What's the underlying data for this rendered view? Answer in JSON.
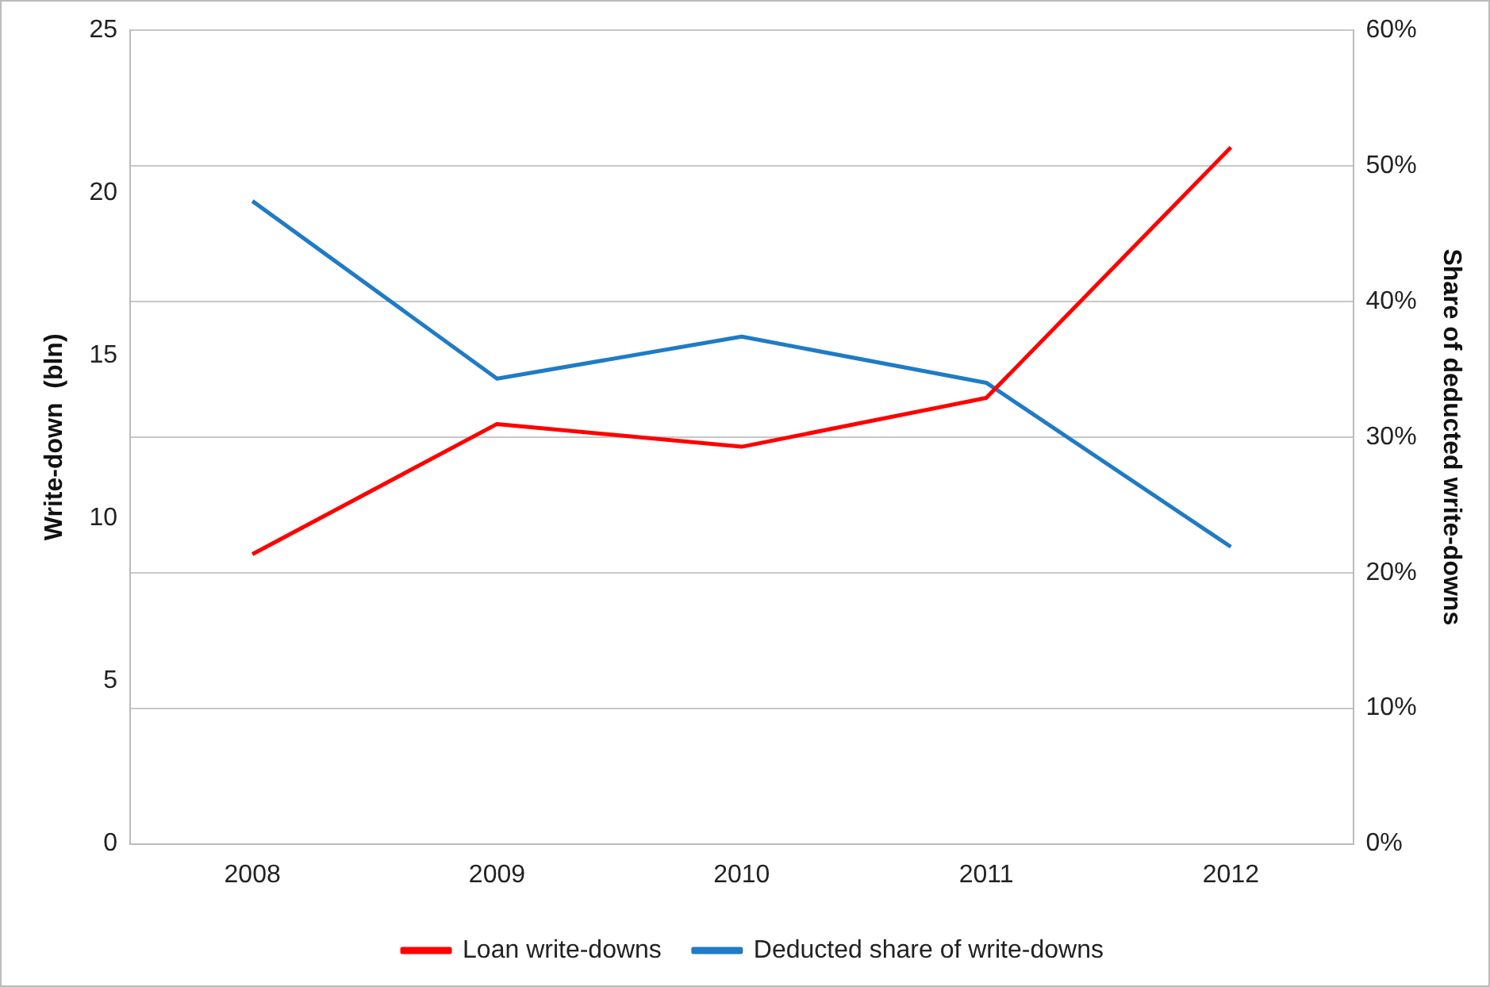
{
  "chart_data": {
    "type": "line",
    "ylabel": "Write-down  (bln)",
    "y2label": "Share of deducted write-downs",
    "categories": [
      "2008",
      "2009",
      "2010",
      "2011",
      "2012"
    ],
    "series": [
      {
        "name": "Loan write-downs",
        "color": "#ff0000",
        "values": [
          8.9,
          12.9,
          12.2,
          13.7,
          21.4
        ]
      },
      {
        "name": "Deducted share of write-downs",
        "color": "#1f7bc6",
        "axis": "y2",
        "values": [
          47.4,
          34.3,
          37.4,
          34.0,
          21.9
        ]
      }
    ],
    "ylim": [
      0,
      25
    ],
    "yticks": [
      0,
      5,
      10,
      15,
      20,
      25
    ],
    "y2lim": [
      0,
      60
    ],
    "y2ticks": [
      {
        "value": 0,
        "label": "0%"
      },
      {
        "value": 10,
        "label": "10%"
      },
      {
        "value": 20,
        "label": "20%"
      },
      {
        "value": 30,
        "label": "30%"
      },
      {
        "value": 40,
        "label": "40%"
      },
      {
        "value": 50,
        "label": "50%"
      },
      {
        "value": 60,
        "label": "60%"
      }
    ],
    "grid": "y2",
    "legend": "bottom",
    "marker": "none",
    "line_style": "solid"
  }
}
